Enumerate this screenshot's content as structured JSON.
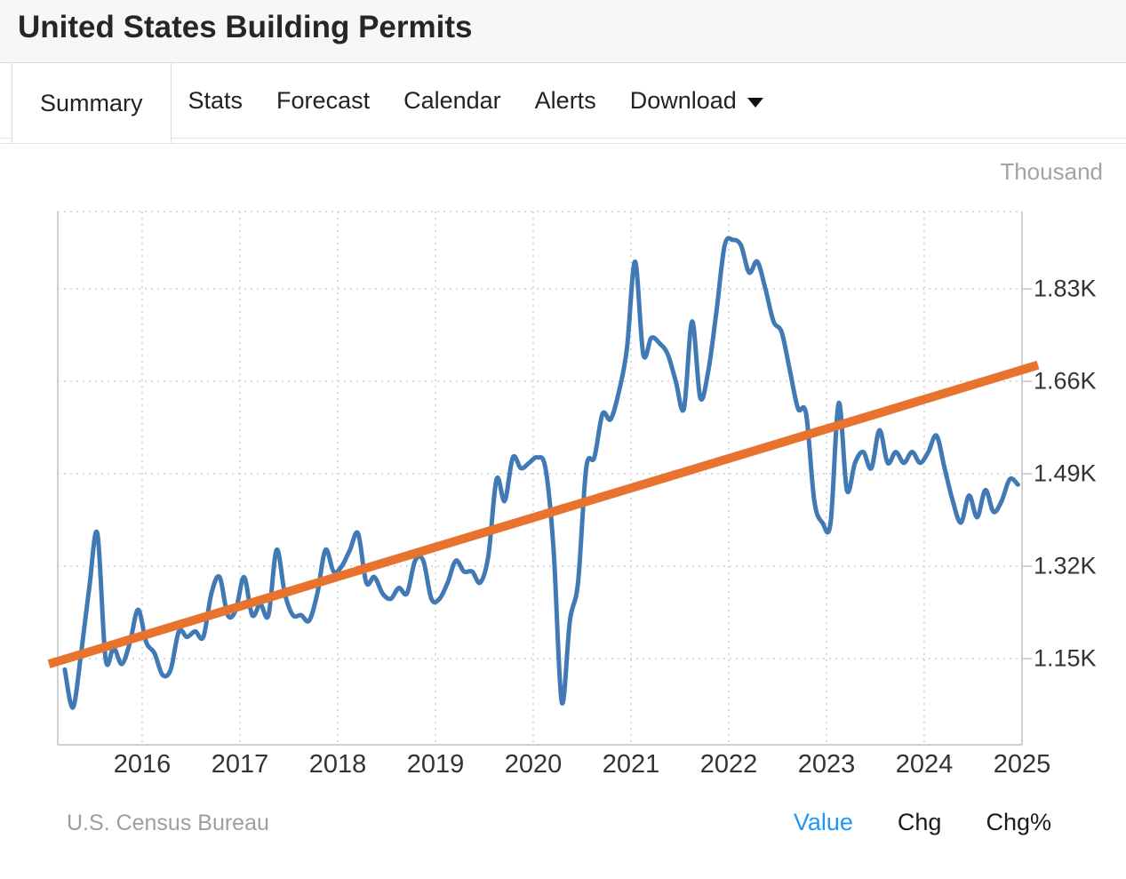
{
  "header": {
    "title": "United States Building Permits"
  },
  "tabs": {
    "items": [
      {
        "label": "Summary",
        "active": true
      },
      {
        "label": "Stats"
      },
      {
        "label": "Forecast"
      },
      {
        "label": "Calendar"
      },
      {
        "label": "Alerts"
      },
      {
        "label": "Download",
        "has_dropdown": true
      }
    ]
  },
  "chart": {
    "unit_label": "Thousand",
    "source": "U.S. Census Bureau",
    "legend": {
      "value": "Value",
      "chg": "Chg",
      "chgpct": "Chg%",
      "active": "Value"
    },
    "colors": {
      "series": "#4179b5",
      "trend": "#e7732e",
      "active_legend": "#2196f3",
      "grid": "#dadada",
      "axis": "#cfcfcf"
    }
  },
  "chart_data": {
    "type": "line",
    "title": "United States Building Permits",
    "unit": "Thousand",
    "grid": true,
    "legend_position": "bottom-right",
    "y_axis": {
      "tick_labels": [
        "1.83K",
        "1.66K",
        "1.49K",
        "1.32K",
        "1.15K"
      ],
      "tick_values": [
        1.83,
        1.66,
        1.49,
        1.32,
        1.15
      ],
      "range": [
        0.99,
        1.97
      ]
    },
    "x_axis": {
      "tick_labels": [
        "2016",
        "2017",
        "2018",
        "2019",
        "2020",
        "2021",
        "2022",
        "2023",
        "2024",
        "2025"
      ],
      "range": [
        2015.2,
        2025.0
      ]
    },
    "series": [
      {
        "name": "Building Permits",
        "color": "#4179b5",
        "start": "2015-03",
        "frequency": "monthly",
        "values": [
          1.13,
          1.06,
          1.16,
          1.28,
          1.38,
          1.15,
          1.17,
          1.14,
          1.18,
          1.24,
          1.18,
          1.16,
          1.12,
          1.13,
          1.2,
          1.19,
          1.2,
          1.19,
          1.27,
          1.3,
          1.23,
          1.24,
          1.3,
          1.23,
          1.25,
          1.23,
          1.35,
          1.27,
          1.23,
          1.23,
          1.22,
          1.27,
          1.35,
          1.31,
          1.32,
          1.35,
          1.38,
          1.29,
          1.3,
          1.27,
          1.26,
          1.28,
          1.27,
          1.33,
          1.33,
          1.26,
          1.26,
          1.29,
          1.33,
          1.31,
          1.31,
          1.29,
          1.34,
          1.48,
          1.44,
          1.52,
          1.5,
          1.51,
          1.52,
          1.5,
          1.35,
          1.07,
          1.22,
          1.29,
          1.5,
          1.52,
          1.6,
          1.59,
          1.64,
          1.72,
          1.88,
          1.71,
          1.74,
          1.73,
          1.71,
          1.66,
          1.61,
          1.77,
          1.63,
          1.68,
          1.79,
          1.91,
          1.92,
          1.91,
          1.86,
          1.88,
          1.83,
          1.77,
          1.75,
          1.68,
          1.61,
          1.6,
          1.44,
          1.4,
          1.4,
          1.62,
          1.46,
          1.51,
          1.53,
          1.5,
          1.57,
          1.51,
          1.53,
          1.51,
          1.53,
          1.51,
          1.53,
          1.56,
          1.5,
          1.44,
          1.4,
          1.45,
          1.41,
          1.46,
          1.42,
          1.44,
          1.48,
          1.47
        ]
      },
      {
        "name": "Trend",
        "color": "#e7732e",
        "shape": "straight-line",
        "start_value": 1.14,
        "end_value": 1.69
      }
    ]
  }
}
